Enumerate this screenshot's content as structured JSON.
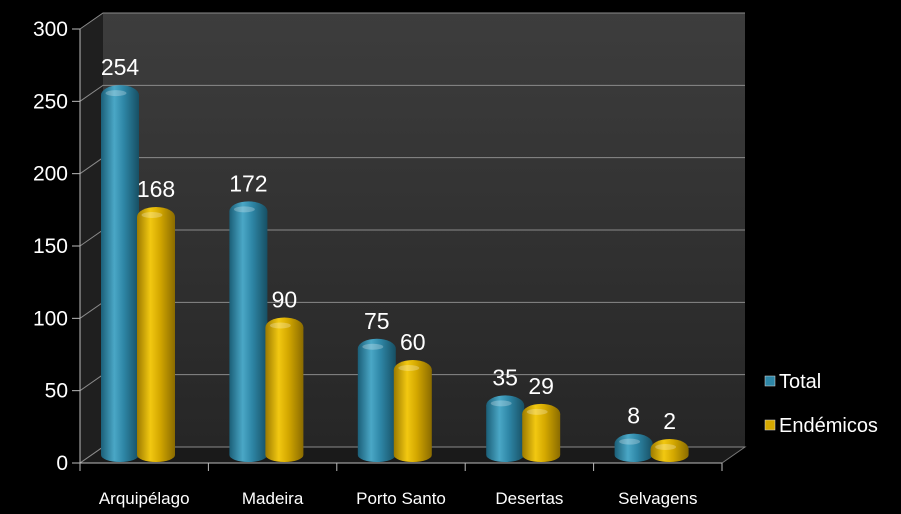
{
  "chart_data": {
    "type": "bar",
    "categories": [
      "Arquipélago",
      "Madeira",
      "Porto Santo",
      "Desertas",
      "Selvagens"
    ],
    "series": [
      {
        "name": "Total",
        "values": [
          254,
          172,
          75,
          35,
          8
        ],
        "color": "#2e86a6"
      },
      {
        "name": "Endémicos",
        "values": [
          168,
          90,
          60,
          29,
          2
        ],
        "color": "#d4a800"
      }
    ],
    "y_ticks": [
      "0",
      "50",
      "100",
      "150",
      "200",
      "250",
      "300"
    ],
    "ylim": [
      0,
      300
    ],
    "grid": true,
    "legend_position": "right",
    "style": "3d-cylinder",
    "background_color": "#000000",
    "text_color": "#ffffff"
  }
}
